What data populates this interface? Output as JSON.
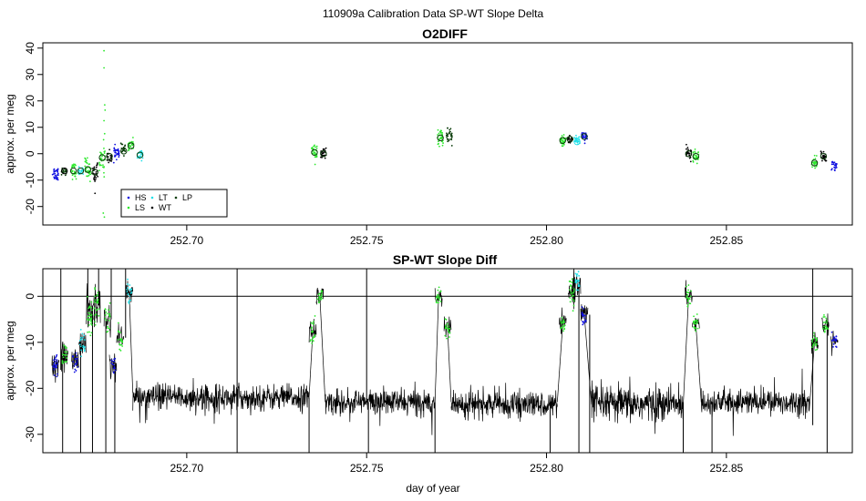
{
  "suptitle": "110909a   Calibration Data SP-WT Slope Delta",
  "colors": {
    "HS": "#1010e0",
    "LS": "#2ee82e",
    "LT": "#22e0e8",
    "WT": "#000000",
    "LP": "#0b3d0b",
    "trace": "#000000"
  },
  "chart_data": [
    {
      "type": "scatter",
      "title": "O2DIFF",
      "xlabel": "",
      "ylabel": "approx. per meg",
      "xlim": [
        252.66,
        252.885
      ],
      "ylim": [
        -27,
        42
      ],
      "xticks": [
        252.7,
        252.75,
        252.8,
        252.85
      ],
      "xtick_labels": [
        "252.70",
        "252.75",
        "252.80",
        "252.85"
      ],
      "yticks": [
        -20,
        -10,
        0,
        10,
        20,
        30,
        40
      ],
      "ytick_labels": [
        "-20",
        "-10",
        "0",
        "10",
        "20",
        "30",
        "40"
      ],
      "legend": {
        "position": "bottom-left",
        "entries": [
          {
            "key": "HS",
            "label": "HS"
          },
          {
            "key": "LS",
            "label": "LS"
          },
          {
            "key": "LT",
            "label": "LT"
          },
          {
            "key": "WT",
            "label": "WT"
          },
          {
            "key": "LP",
            "label": "LP"
          }
        ]
      },
      "clusters": [
        {
          "x": 252.6635,
          "y": -7.5,
          "key": "HS",
          "n": 30,
          "spread": 3.0
        },
        {
          "x": 252.666,
          "y": -6.5,
          "key": "LP",
          "n": 20,
          "spread": 2.0
        },
        {
          "x": 252.6685,
          "y": -6.5,
          "key": "LS",
          "n": 30,
          "spread": 3.0
        },
        {
          "x": 252.6705,
          "y": -6.5,
          "key": "LT",
          "n": 20,
          "spread": 2.0
        },
        {
          "x": 252.6725,
          "y": -6.0,
          "key": "LS",
          "n": 35,
          "spread": 4.5
        },
        {
          "x": 252.6745,
          "y": -7.0,
          "key": "WT",
          "n": 30,
          "spread": 4.0
        },
        {
          "x": 252.6765,
          "y": -1.5,
          "key": "LS",
          "n": 35,
          "spread": 7.0
        },
        {
          "x": 252.6785,
          "y": -1.0,
          "key": "WT",
          "n": 20,
          "spread": 3.0
        },
        {
          "x": 252.6805,
          "y": 0.5,
          "key": "HS",
          "n": 30,
          "spread": 2.5
        },
        {
          "x": 252.6825,
          "y": 1.5,
          "key": "LP",
          "n": 20,
          "spread": 2.0
        },
        {
          "x": 252.6845,
          "y": 3.0,
          "key": "LS",
          "n": 30,
          "spread": 2.5
        },
        {
          "x": 252.687,
          "y": -0.5,
          "key": "LT",
          "n": 25,
          "spread": 2.0
        },
        {
          "x": 252.7355,
          "y": 0.5,
          "key": "LS",
          "n": 30,
          "spread": 3.5
        },
        {
          "x": 252.738,
          "y": 0.0,
          "key": "WT",
          "n": 25,
          "spread": 3.0
        },
        {
          "x": 252.7705,
          "y": 6.0,
          "key": "LS",
          "n": 30,
          "spread": 3.0
        },
        {
          "x": 252.773,
          "y": 6.5,
          "key": "LP",
          "n": 25,
          "spread": 3.0
        },
        {
          "x": 252.8045,
          "y": 5.0,
          "key": "LS",
          "n": 30,
          "spread": 2.5
        },
        {
          "x": 252.8065,
          "y": 5.5,
          "key": "WT",
          "n": 20,
          "spread": 2.5
        },
        {
          "x": 252.8085,
          "y": 5.0,
          "key": "LT",
          "n": 25,
          "spread": 2.0
        },
        {
          "x": 252.8105,
          "y": 6.5,
          "key": "HS",
          "n": 30,
          "spread": 2.0
        },
        {
          "x": 252.8395,
          "y": 0.0,
          "key": "WT",
          "n": 25,
          "spread": 2.5
        },
        {
          "x": 252.8415,
          "y": -1.0,
          "key": "LS",
          "n": 30,
          "spread": 2.5
        },
        {
          "x": 252.8745,
          "y": -3.5,
          "key": "LS",
          "n": 30,
          "spread": 2.5
        },
        {
          "x": 252.877,
          "y": -1.0,
          "key": "WT",
          "n": 20,
          "spread": 2.5
        },
        {
          "x": 252.88,
          "y": -4.5,
          "key": "HS",
          "n": 25,
          "spread": 2.0
        }
      ],
      "outliers": [
        {
          "x": 252.677,
          "y": 39,
          "key": "LS"
        },
        {
          "x": 252.677,
          "y": 32.5,
          "key": "LS"
        },
        {
          "x": 252.6772,
          "y": 18.5,
          "key": "LS"
        },
        {
          "x": 252.6773,
          "y": 16.5,
          "key": "LS"
        },
        {
          "x": 252.677,
          "y": 12.5,
          "key": "LS"
        },
        {
          "x": 252.6768,
          "y": -22.5,
          "key": "LS"
        },
        {
          "x": 252.6771,
          "y": -24,
          "key": "LS"
        },
        {
          "x": 252.6745,
          "y": -15,
          "key": "WT"
        }
      ],
      "means": [
        {
          "x": 252.666,
          "y": -6.5,
          "key": "WT"
        },
        {
          "x": 252.6685,
          "y": -6.5,
          "key": "LP"
        },
        {
          "x": 252.6705,
          "y": -6.5,
          "key": "LP"
        },
        {
          "x": 252.6725,
          "y": -6.0,
          "key": "LP"
        },
        {
          "x": 252.6745,
          "y": -7.0,
          "key": "LP"
        },
        {
          "x": 252.6765,
          "y": -1.5,
          "key": "LP"
        },
        {
          "x": 252.6785,
          "y": -1.0,
          "key": "LP"
        },
        {
          "x": 252.6825,
          "y": 1.0,
          "key": "LP"
        },
        {
          "x": 252.6845,
          "y": 3.0,
          "key": "LP"
        },
        {
          "x": 252.687,
          "y": -0.5,
          "key": "LP"
        },
        {
          "x": 252.7355,
          "y": 0.5,
          "key": "LP"
        },
        {
          "x": 252.738,
          "y": 0.0,
          "key": "LP"
        },
        {
          "x": 252.7705,
          "y": 6.0,
          "key": "LP"
        },
        {
          "x": 252.773,
          "y": 6.5,
          "key": "LP"
        },
        {
          "x": 252.8045,
          "y": 5.0,
          "key": "LP"
        },
        {
          "x": 252.8065,
          "y": 5.5,
          "key": "LP"
        },
        {
          "x": 252.8085,
          "y": 4.5,
          "key": "LT"
        },
        {
          "x": 252.8105,
          "y": 6.5,
          "key": "LP"
        },
        {
          "x": 252.8395,
          "y": 0.0,
          "key": "LP"
        },
        {
          "x": 252.8415,
          "y": -1.0,
          "key": "LP"
        },
        {
          "x": 252.8745,
          "y": -3.5,
          "key": "LP"
        },
        {
          "x": 252.877,
          "y": -1.0,
          "key": "LP"
        }
      ]
    },
    {
      "type": "line",
      "title": "SP-WT Slope Diff",
      "xlabel": "day of year",
      "ylabel": "approx. per meg",
      "xlim": [
        252.66,
        252.885
      ],
      "ylim": [
        -34,
        6
      ],
      "xticks": [
        252.7,
        252.75,
        252.8,
        252.85
      ],
      "xtick_labels": [
        "252.70",
        "252.75",
        "252.80",
        "252.85"
      ],
      "yticks": [
        -30,
        -20,
        -10,
        0
      ],
      "ytick_labels": [
        "-30",
        "-20",
        "-10",
        "0"
      ],
      "reference_line_y": 0,
      "baseline": [
        {
          "x": 252.685,
          "y": -21.0
        },
        {
          "x": 252.7,
          "y": -22.0
        },
        {
          "x": 252.715,
          "y": -22.5
        },
        {
          "x": 252.734,
          "y": -22.0
        },
        {
          "x": 252.75,
          "y": -23.0
        },
        {
          "x": 252.769,
          "y": -23.0
        },
        {
          "x": 252.785,
          "y": -23.5
        },
        {
          "x": 252.803,
          "y": -23.0
        },
        {
          "x": 252.82,
          "y": -23.5
        },
        {
          "x": 252.838,
          "y": -23.0
        },
        {
          "x": 252.855,
          "y": -22.0
        },
        {
          "x": 252.87,
          "y": -25.0
        }
      ],
      "segments": [
        {
          "x0": 252.685,
          "x1": 252.734,
          "level": -22,
          "noise": 2.5
        },
        {
          "x0": 252.7385,
          "x1": 252.769,
          "level": -23,
          "noise": 2.5
        },
        {
          "x0": 252.7735,
          "x1": 252.803,
          "level": -23.5,
          "noise": 2.5
        },
        {
          "x0": 252.8125,
          "x1": 252.838,
          "level": -23.5,
          "noise": 3.5
        },
        {
          "x0": 252.843,
          "x1": 252.873,
          "level": -23,
          "noise": 2.5
        }
      ],
      "cal_points": [
        {
          "x": 252.6635,
          "y": -15,
          "key": "HS",
          "n": 25,
          "spread": 2.5
        },
        {
          "x": 252.666,
          "y": -13,
          "key": "LS",
          "n": 20,
          "spread": 3.0
        },
        {
          "x": 252.669,
          "y": -14,
          "key": "HS",
          "n": 20,
          "spread": 3.0
        },
        {
          "x": 252.671,
          "y": -10,
          "key": "LT",
          "n": 20,
          "spread": 3.0
        },
        {
          "x": 252.673,
          "y": -4,
          "key": "LS",
          "n": 30,
          "spread": 5.0
        },
        {
          "x": 252.675,
          "y": -2,
          "key": "LS",
          "n": 25,
          "spread": 5.0
        },
        {
          "x": 252.678,
          "y": -5,
          "key": "LS",
          "n": 20,
          "spread": 4.0
        },
        {
          "x": 252.6795,
          "y": -15,
          "key": "HS",
          "n": 15,
          "spread": 3.0
        },
        {
          "x": 252.6815,
          "y": -9,
          "key": "LS",
          "n": 20,
          "spread": 3.0
        },
        {
          "x": 252.684,
          "y": 1,
          "key": "LT",
          "n": 20,
          "spread": 2.5
        },
        {
          "x": 252.735,
          "y": -8,
          "key": "LS",
          "n": 20,
          "spread": 2.5
        },
        {
          "x": 252.737,
          "y": 0,
          "key": "LS",
          "n": 20,
          "spread": 2.0
        },
        {
          "x": 252.77,
          "y": 0,
          "key": "LS",
          "n": 20,
          "spread": 2.0
        },
        {
          "x": 252.7725,
          "y": -7,
          "key": "LS",
          "n": 20,
          "spread": 2.5
        },
        {
          "x": 252.8045,
          "y": -6,
          "key": "LS",
          "n": 20,
          "spread": 2.0
        },
        {
          "x": 252.807,
          "y": 1,
          "key": "LS",
          "n": 25,
          "spread": 3.0
        },
        {
          "x": 252.8085,
          "y": 3,
          "key": "LT",
          "n": 20,
          "spread": 3.0
        },
        {
          "x": 252.8105,
          "y": -4,
          "key": "HS",
          "n": 20,
          "spread": 2.5
        },
        {
          "x": 252.8395,
          "y": 0,
          "key": "LS",
          "n": 20,
          "spread": 2.5
        },
        {
          "x": 252.8415,
          "y": -6,
          "key": "LS",
          "n": 20,
          "spread": 2.0
        },
        {
          "x": 252.8745,
          "y": -10,
          "key": "LS",
          "n": 20,
          "spread": 2.5
        },
        {
          "x": 252.8775,
          "y": -6,
          "key": "LS",
          "n": 20,
          "spread": 2.0
        },
        {
          "x": 252.88,
          "y": -10,
          "key": "HS",
          "n": 20,
          "spread": 2.0
        }
      ],
      "spikes": [
        {
          "x": 252.665,
          "y0": -16,
          "y1": 6
        },
        {
          "x": 252.6655,
          "y0": -13,
          "y1": -34
        },
        {
          "x": 252.6705,
          "y0": -10,
          "y1": -34
        },
        {
          "x": 252.6725,
          "y0": -4,
          "y1": 6
        },
        {
          "x": 252.6738,
          "y0": -2,
          "y1": -34
        },
        {
          "x": 252.6755,
          "y0": -2,
          "y1": 6
        },
        {
          "x": 252.6775,
          "y0": -5,
          "y1": -34
        },
        {
          "x": 252.679,
          "y0": -5,
          "y1": 6
        },
        {
          "x": 252.68,
          "y0": -15,
          "y1": -34
        },
        {
          "x": 252.683,
          "y0": -9,
          "y1": 6
        },
        {
          "x": 252.714,
          "y0": -22,
          "y1": 6
        },
        {
          "x": 252.714,
          "y0": -22,
          "y1": -34
        },
        {
          "x": 252.734,
          "y0": -22,
          "y1": -34
        },
        {
          "x": 252.75,
          "y0": -23,
          "y1": 6
        },
        {
          "x": 252.7505,
          "y0": -23,
          "y1": -34
        },
        {
          "x": 252.769,
          "y0": -23,
          "y1": -34
        },
        {
          "x": 252.801,
          "y0": -23,
          "y1": -34
        },
        {
          "x": 252.809,
          "y0": 3,
          "y1": -34
        },
        {
          "x": 252.812,
          "y0": -4,
          "y1": -34
        },
        {
          "x": 252.838,
          "y0": -23,
          "y1": -34
        },
        {
          "x": 252.846,
          "y0": -23,
          "y1": -34
        },
        {
          "x": 252.874,
          "y0": -28,
          "y1": 6
        },
        {
          "x": 252.878,
          "y0": -6,
          "y1": -34
        }
      ]
    }
  ]
}
